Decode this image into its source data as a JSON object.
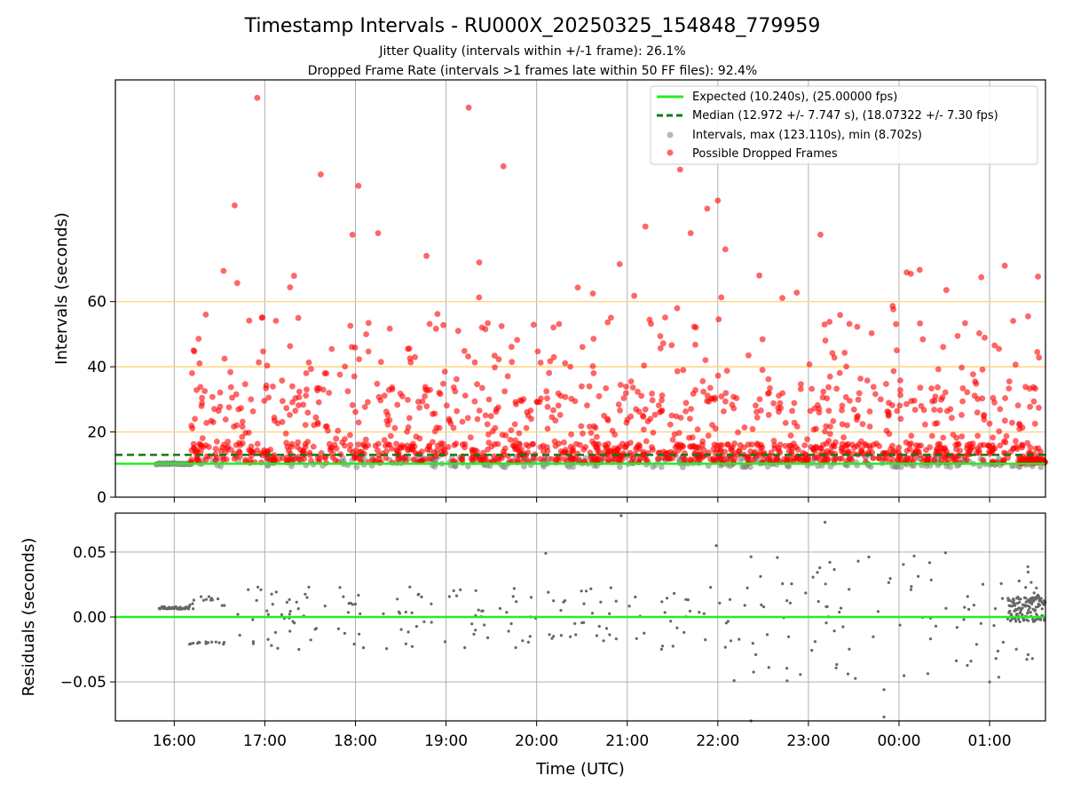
{
  "figure": {
    "title": "Timestamp Intervals - RU000X_20250325_154848_779959",
    "subtitle_1": "Jitter Quality (intervals within +/-1 frame): 26.1%",
    "subtitle_2": "Dropped Frame Rate (intervals >1 frames late within 50 FF files): 92.4%"
  },
  "chart_data": [
    {
      "type": "scatter",
      "panel": "intervals",
      "ylabel": "Intervals (seconds)",
      "xlabel": "",
      "xlim": [
        "15:21",
        "01:37"
      ],
      "ylim": [
        0,
        128
      ],
      "yticks": [
        0,
        20,
        40,
        60
      ],
      "xticks": [
        "16:00",
        "17:00",
        "18:00",
        "19:00",
        "20:00",
        "21:00",
        "22:00",
        "23:00",
        "00:00",
        "01:00"
      ],
      "grid": "vertical at x ticks",
      "reference_lines": [
        {
          "y": 20,
          "color": "#ffd580"
        },
        {
          "y": 40,
          "color": "#ffd580"
        },
        {
          "y": 60,
          "color": "#ffd580"
        }
      ],
      "legend_position": "top-right",
      "series": [
        {
          "name": "Expected (10.240s), (25.00000 fps)",
          "kind": "hline",
          "y": 10.24,
          "color": "#22ee22",
          "style": "solid"
        },
        {
          "name": "Median (12.972 +/- 7.747 s), (18.07322 +/- 7.30 fps)",
          "kind": "hline",
          "y": 12.972,
          "color": "#117a11",
          "style": "dashed"
        },
        {
          "name": "Intervals, max (123.110s), min (8.702s)",
          "kind": "scatter",
          "color": "#888888"
        },
        {
          "name": "Possible Dropped Frames",
          "kind": "scatter",
          "color": "#ff0000",
          "highlighted_points": [
            {
              "x": "16:55",
              "y": 122.5
            },
            {
              "x": "19:15",
              "y": 119.5
            },
            {
              "x": "21:35",
              "y": 100.5
            },
            {
              "x": "19:38",
              "y": 101.5
            },
            {
              "x": "17:37",
              "y": 99
            },
            {
              "x": "18:02",
              "y": 95.5
            },
            {
              "x": "21:53",
              "y": 88.5
            },
            {
              "x": "22:00",
              "y": 91
            },
            {
              "x": "16:40",
              "y": 89.5
            },
            {
              "x": "21:12",
              "y": 83
            },
            {
              "x": "21:42",
              "y": 81
            },
            {
              "x": "23:08",
              "y": 80.5
            },
            {
              "x": "17:58",
              "y": 80.5
            },
            {
              "x": "18:15",
              "y": 81
            },
            {
              "x": "22:05",
              "y": 76
            },
            {
              "x": "01:10",
              "y": 71
            },
            {
              "x": "19:22",
              "y": 72
            },
            {
              "x": "18:47",
              "y": 74
            },
            {
              "x": "20:55",
              "y": 71.5
            }
          ]
        }
      ]
    },
    {
      "type": "scatter",
      "panel": "residuals",
      "xlabel": "Time (UTC)",
      "ylabel": "Residuals (seconds)",
      "xlim": [
        "15:21",
        "01:37"
      ],
      "ylim": [
        -0.08,
        0.08
      ],
      "yticks": [
        -0.05,
        0.0,
        0.05
      ],
      "ytick_labels": [
        "−0.05",
        "0.00",
        "0.05"
      ],
      "xticks": [
        "16:00",
        "17:00",
        "18:00",
        "19:00",
        "20:00",
        "21:00",
        "22:00",
        "23:00",
        "00:00",
        "01:00"
      ],
      "grid": "both",
      "series": [
        {
          "kind": "hline",
          "y": 0.0,
          "color": "#22ee22"
        },
        {
          "kind": "scatter",
          "color": "#666666",
          "highlighted_points": [
            {
              "x": "20:56",
              "y": 0.078
            },
            {
              "x": "23:11",
              "y": 0.073
            },
            {
              "x": "21:59",
              "y": 0.055
            },
            {
              "x": "20:06",
              "y": 0.049
            },
            {
              "x": "23:33",
              "y": 0.043
            },
            {
              "x": "00:10",
              "y": 0.047
            },
            {
              "x": "23:50",
              "y": -0.056
            },
            {
              "x": "23:50",
              "y": -0.077
            },
            {
              "x": "22:22",
              "y": -0.08
            },
            {
              "x": "01:00",
              "y": -0.05
            }
          ]
        }
      ]
    }
  ]
}
